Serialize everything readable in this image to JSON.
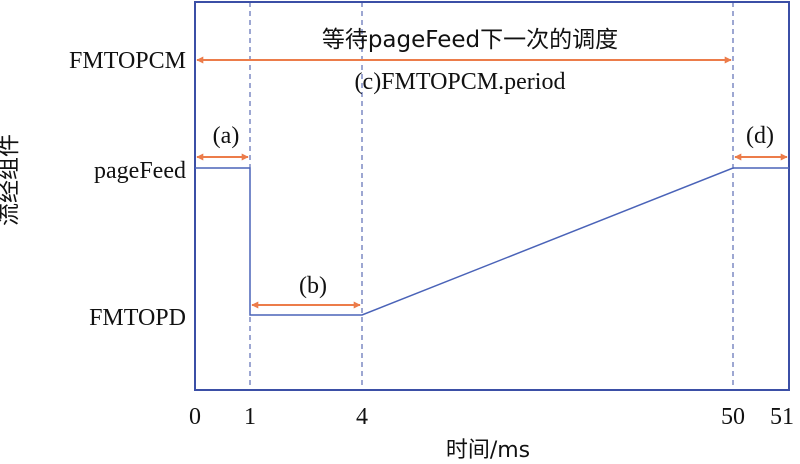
{
  "texts": {
    "y_axis_title": "流经组件",
    "x_axis_title": "时间/ms",
    "row_fmtopcm": "FMTOPCM",
    "row_pagefeed": "pageFeed",
    "row_fmtopd": "FMTOPD",
    "wait_caption": "等待pageFeed下一次的调度",
    "period_caption": "(c)FMTOPCM.period",
    "marker_a": "(a)",
    "marker_b": "(b)",
    "marker_d": "(d)"
  },
  "ticks": [
    "0",
    "1",
    "4",
    "50",
    "51"
  ],
  "colors": {
    "frame": "#3b4fa6",
    "trace": "#4a63b8",
    "arrow": "#ec7c4a",
    "text": "#111111"
  }
}
